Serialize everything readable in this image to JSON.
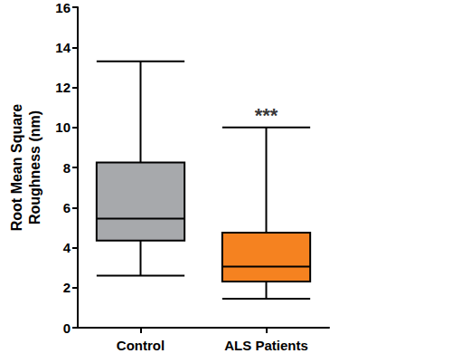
{
  "chart_data": {
    "type": "boxplot",
    "y_label": "Root Mean Square\nRoughness (nm)",
    "categories": [
      "Control",
      "ALS Patients"
    ],
    "boxes": [
      [
        2.6,
        4.35,
        5.45,
        8.25,
        13.3
      ],
      [
        1.45,
        2.3,
        3.05,
        4.75,
        10.0
      ]
    ],
    "colors": [
      "#a7a9ac",
      "#f58220"
    ],
    "ylim": [
      0,
      16
    ],
    "yticks": [
      0,
      2,
      4,
      6,
      8,
      10,
      12,
      14,
      16
    ],
    "annotations": [
      {
        "text": "***",
        "category": "ALS Patients",
        "y": 10.6
      }
    ],
    "grid": false
  }
}
